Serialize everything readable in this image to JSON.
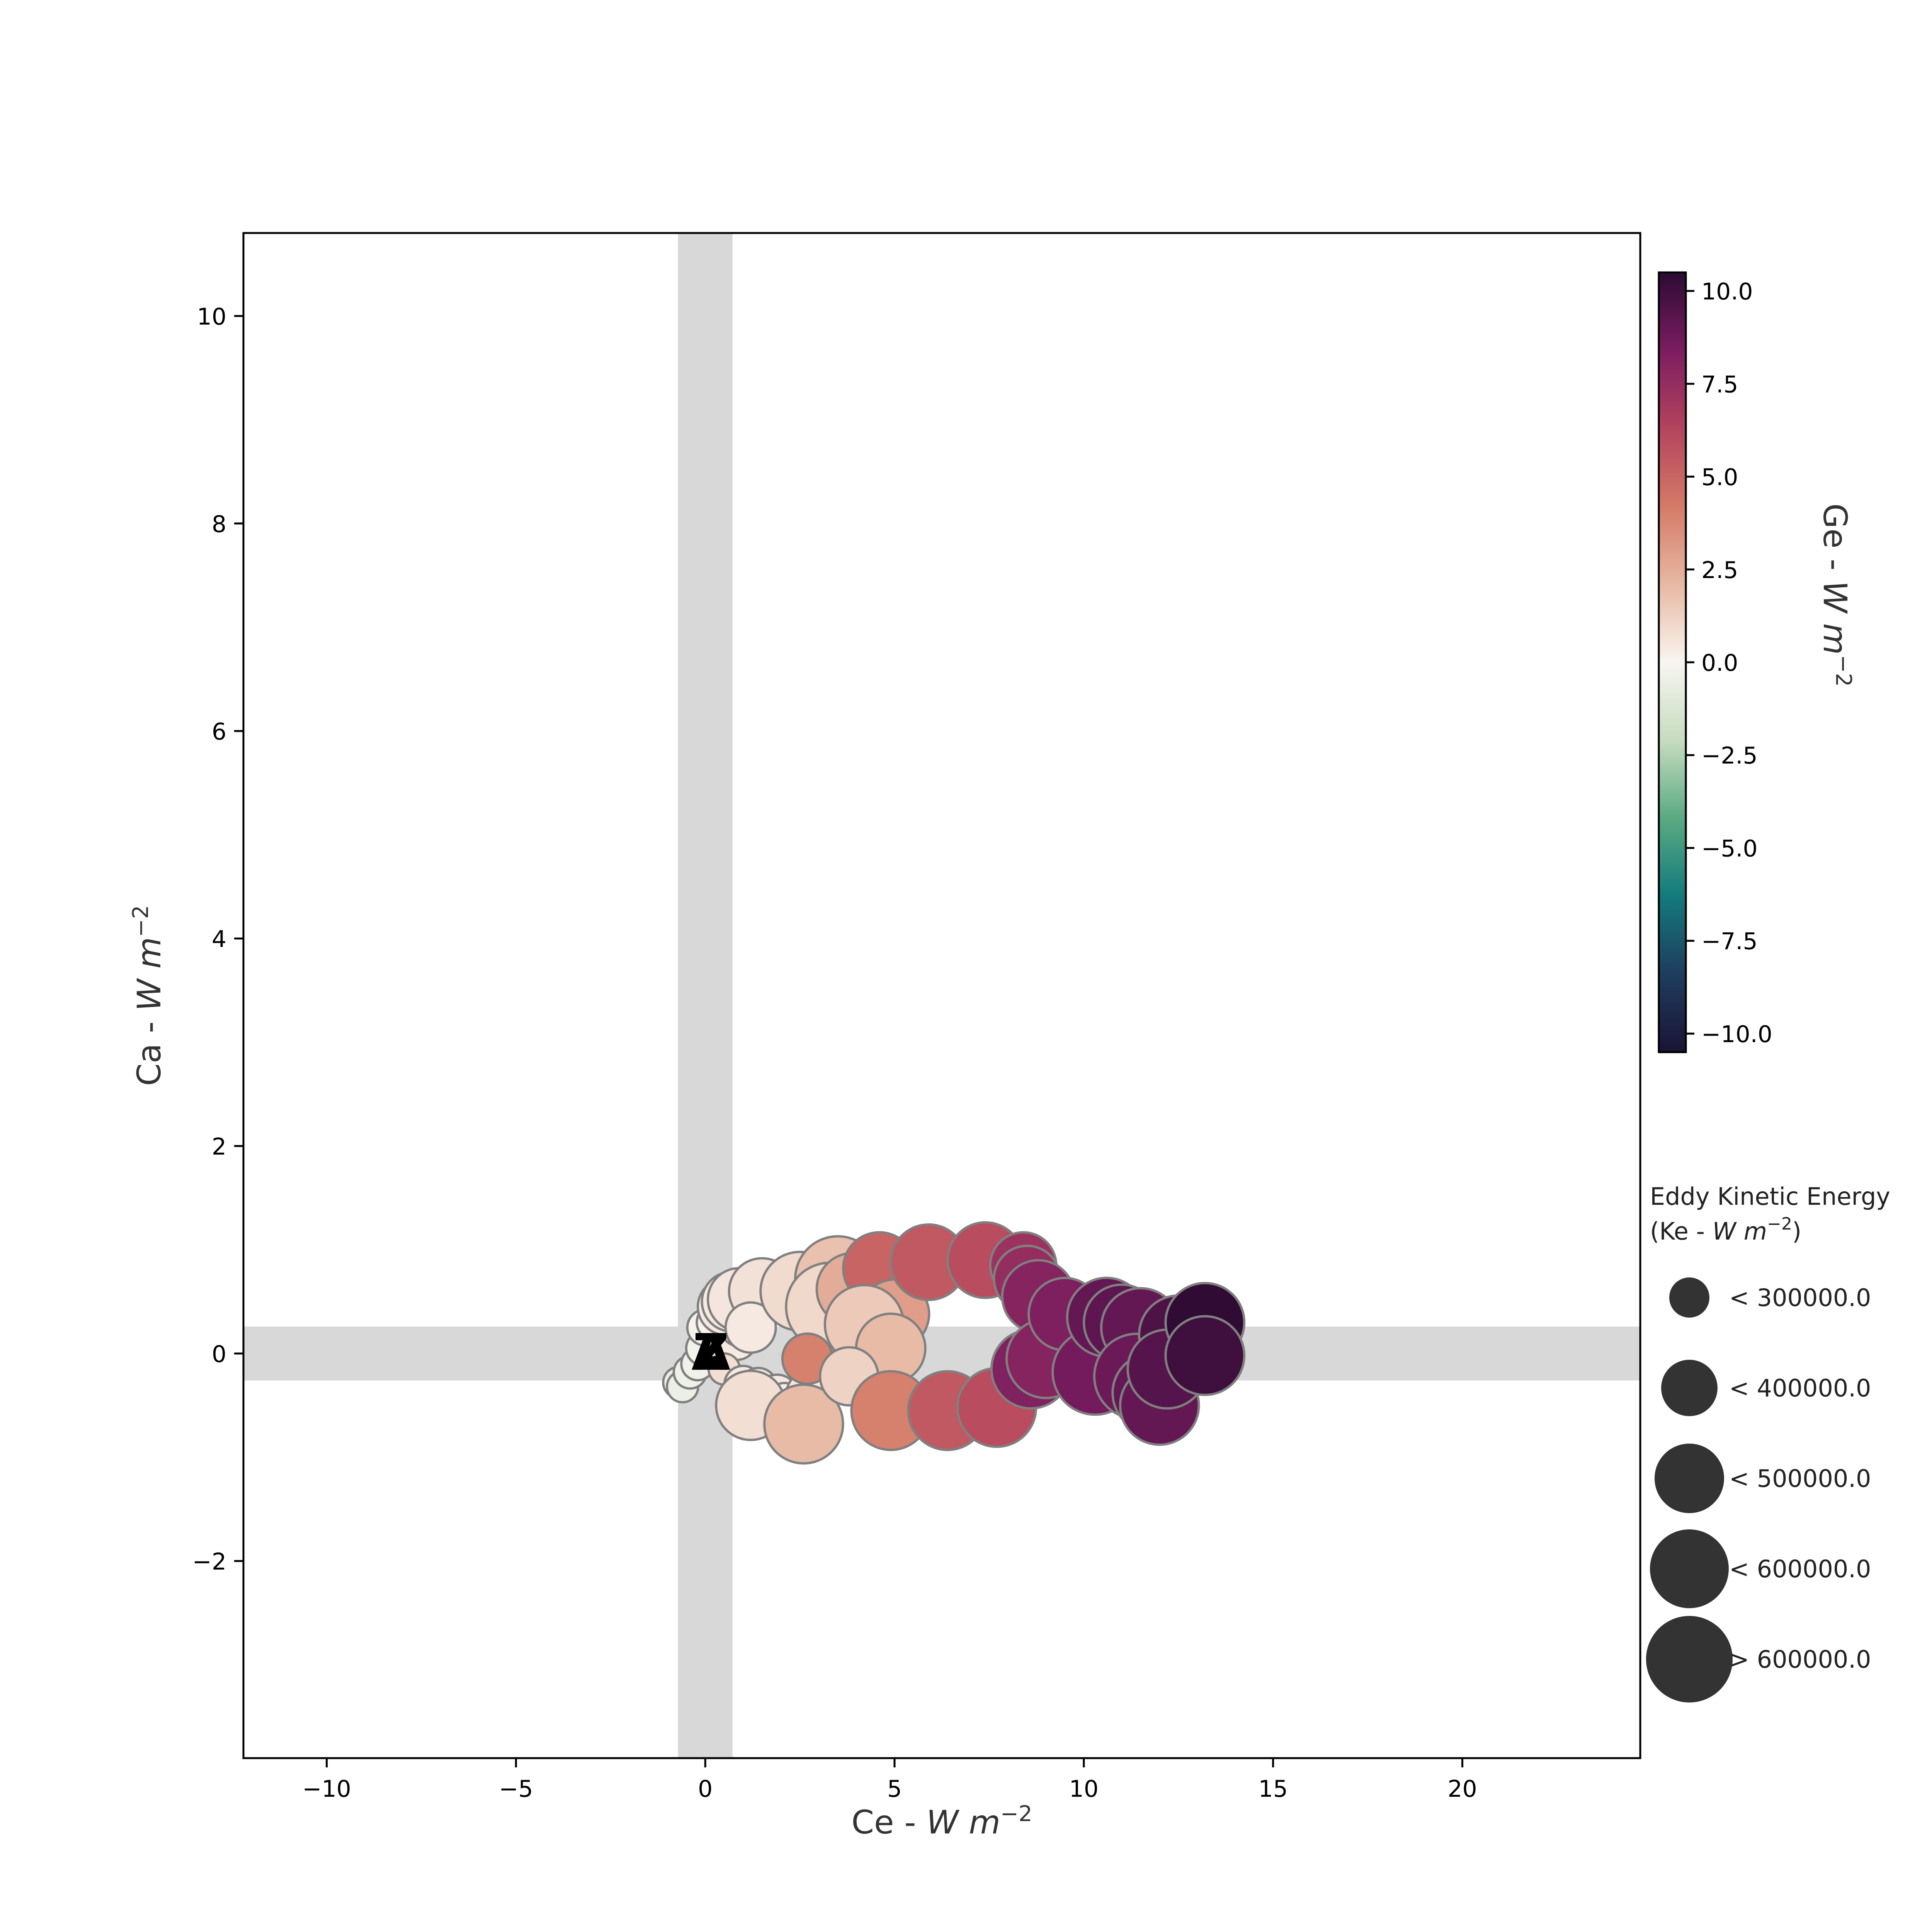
{
  "chart_data": {
    "type": "scatter",
    "title": "",
    "xlabel": {
      "text": "Ce - ",
      "math": "W m",
      "sup": "−2"
    },
    "ylabel": {
      "text": "Ca - ",
      "math": "W m",
      "sup": "−2"
    },
    "xlim": [
      -12.2,
      24.7
    ],
    "ylim": [
      -3.9,
      10.8
    ],
    "xticks": [
      {
        "value": -10,
        "label": "−10"
      },
      {
        "value": -5,
        "label": "−5"
      },
      {
        "value": 0,
        "label": "0"
      },
      {
        "value": 5,
        "label": "5"
      },
      {
        "value": 10,
        "label": "10"
      },
      {
        "value": 15,
        "label": "15"
      },
      {
        "value": 20,
        "label": "20"
      }
    ],
    "yticks": [
      {
        "value": -2,
        "label": "−2"
      },
      {
        "value": 0,
        "label": "0"
      },
      {
        "value": 2,
        "label": "2"
      },
      {
        "value": 4,
        "label": "4"
      },
      {
        "value": 6,
        "label": "6"
      },
      {
        "value": 8,
        "label": "8"
      },
      {
        "value": 10,
        "label": "10"
      }
    ],
    "shaded_bands": {
      "vertical": [
        -0.72,
        0.72
      ],
      "horizontal": [
        -0.26,
        0.26
      ],
      "color": "#d8d8d8"
    },
    "colorbar": {
      "label": {
        "text": "Ge - ",
        "math": "W m",
        "sup": "−2"
      },
      "range": [
        -10.5,
        10.5
      ],
      "ticks": [
        {
          "value": 10.0,
          "label": "10.0"
        },
        {
          "value": 7.5,
          "label": "7.5"
        },
        {
          "value": 5.0,
          "label": "5.0"
        },
        {
          "value": 2.5,
          "label": "2.5"
        },
        {
          "value": 0.0,
          "label": "0.0"
        },
        {
          "value": -2.5,
          "label": "−2.5"
        },
        {
          "value": -5.0,
          "label": "−5.0"
        },
        {
          "value": -7.5,
          "label": "−7.5"
        },
        {
          "value": -10.0,
          "label": "−10.0"
        }
      ],
      "colormap": [
        "#1a1433",
        "#1f3c5e",
        "#137a7c",
        "#5aaa82",
        "#c7dcc0",
        "#f8f5f0",
        "#e7b8a3",
        "#d47a68",
        "#b4445e",
        "#7b1d60",
        "#2c0b33"
      ]
    },
    "size_legend": {
      "title_line1": "Eddy Kinetic Energy",
      "title_line2": {
        "text": "(Ke - ",
        "math": "W m",
        "sup": "−2",
        "close": ")"
      },
      "entries": [
        {
          "label": "< 300000.0",
          "ke": 300000
        },
        {
          "label": "< 400000.0",
          "ke": 400000
        },
        {
          "label": "< 500000.0",
          "ke": 500000
        },
        {
          "label": "< 600000.0",
          "ke": 600000
        },
        {
          "label": "> 600000.0",
          "ke": 700000
        }
      ],
      "marker_color": "#333333"
    },
    "markers": [
      {
        "name": "start",
        "symbol": "A",
        "x": 0.15,
        "y": 0.0
      },
      {
        "name": "end",
        "symbol": "Z",
        "x": 0.15,
        "y": 0.0
      }
    ],
    "point_edge_color": "#808080",
    "points": [
      {
        "x": -0.7,
        "y": -0.28,
        "ge": -0.6,
        "ke": 260000
      },
      {
        "x": -0.6,
        "y": -0.32,
        "ge": -0.5,
        "ke": 260000
      },
      {
        "x": -0.4,
        "y": -0.18,
        "ge": -0.4,
        "ke": 270000
      },
      {
        "x": -0.2,
        "y": -0.1,
        "ge": -0.3,
        "ke": 270000
      },
      {
        "x": -0.05,
        "y": 0.05,
        "ge": -0.2,
        "ke": 280000
      },
      {
        "x": 0.0,
        "y": 0.25,
        "ge": 0.1,
        "ke": 290000
      },
      {
        "x": 0.25,
        "y": 0.3,
        "ge": 0.1,
        "ke": 290000
      },
      {
        "x": 0.45,
        "y": 0.38,
        "ge": 0.2,
        "ke": 300000
      },
      {
        "x": 0.7,
        "y": 0.3,
        "ge": 0.3,
        "ke": 300000
      },
      {
        "x": 0.85,
        "y": 0.12,
        "ge": 0.4,
        "ke": 300000
      },
      {
        "x": 0.9,
        "y": 0.25,
        "ge": 0.3,
        "ke": 300000
      },
      {
        "x": 0.5,
        "y": -0.15,
        "ge": 0.8,
        "ke": 260000
      },
      {
        "x": 1.0,
        "y": -0.3,
        "ge": 0.4,
        "ke": 300000
      },
      {
        "x": 1.4,
        "y": -0.32,
        "ge": 0.5,
        "ke": 300000
      },
      {
        "x": 1.9,
        "y": -0.4,
        "ge": 0.4,
        "ke": 320000
      },
      {
        "x": 2.1,
        "y": -0.48,
        "ge": 0.3,
        "ke": 320000
      },
      {
        "x": 2.8,
        "y": -0.4,
        "ge": 0.5,
        "ke": 380000
      },
      {
        "x": 0.55,
        "y": 0.45,
        "ge": 0.4,
        "ke": 420000
      },
      {
        "x": 0.7,
        "y": 0.5,
        "ge": 0.4,
        "ke": 440000
      },
      {
        "x": 0.9,
        "y": 0.52,
        "ge": 0.5,
        "ke": 460000
      },
      {
        "x": 1.5,
        "y": 0.6,
        "ge": 0.7,
        "ke": 480000
      },
      {
        "x": 1.2,
        "y": 0.25,
        "ge": 0.4,
        "ke": 380000
      },
      {
        "x": 2.5,
        "y": 0.6,
        "ge": 0.9,
        "ke": 560000
      },
      {
        "x": 3.5,
        "y": 0.72,
        "ge": 1.8,
        "ke": 600000
      },
      {
        "x": 3.3,
        "y": 0.45,
        "ge": 1.0,
        "ke": 620000
      },
      {
        "x": 3.9,
        "y": 0.62,
        "ge": 2.5,
        "ke": 520000
      },
      {
        "x": 4.6,
        "y": 0.82,
        "ge": 5.0,
        "ke": 520000
      },
      {
        "x": 5.0,
        "y": 0.38,
        "ge": 3.0,
        "ke": 500000
      },
      {
        "x": 4.2,
        "y": 0.28,
        "ge": 1.5,
        "ke": 560000
      },
      {
        "x": 4.9,
        "y": 0.05,
        "ge": 2.0,
        "ke": 500000
      },
      {
        "x": 1.2,
        "y": -0.5,
        "ge": 0.8,
        "ke": 500000
      },
      {
        "x": 2.6,
        "y": -0.68,
        "ge": 2.0,
        "ke": 560000
      },
      {
        "x": 2.7,
        "y": -0.05,
        "ge": 4.0,
        "ke": 380000
      },
      {
        "x": 3.8,
        "y": -0.22,
        "ge": 1.2,
        "ke": 430000
      },
      {
        "x": 4.9,
        "y": -0.55,
        "ge": 4.0,
        "ke": 560000
      },
      {
        "x": 5.9,
        "y": 0.88,
        "ge": 5.5,
        "ke": 540000
      },
      {
        "x": 6.4,
        "y": -0.55,
        "ge": 5.5,
        "ke": 560000
      },
      {
        "x": 7.4,
        "y": 0.9,
        "ge": 6.0,
        "ke": 540000
      },
      {
        "x": 7.7,
        "y": -0.52,
        "ge": 6.0,
        "ke": 560000
      },
      {
        "x": 8.4,
        "y": 0.85,
        "ge": 7.2,
        "ke": 480000
      },
      {
        "x": 8.5,
        "y": 0.72,
        "ge": 7.5,
        "ke": 480000
      },
      {
        "x": 8.8,
        "y": 0.55,
        "ge": 8.0,
        "ke": 520000
      },
      {
        "x": 8.6,
        "y": -0.15,
        "ge": 8.2,
        "ke": 560000
      },
      {
        "x": 9.0,
        "y": -0.05,
        "ge": 8.0,
        "ke": 560000
      },
      {
        "x": 9.5,
        "y": 0.38,
        "ge": 8.3,
        "ke": 520000
      },
      {
        "x": 10.3,
        "y": -0.18,
        "ge": 8.6,
        "ke": 600000
      },
      {
        "x": 10.6,
        "y": 0.35,
        "ge": 9.0,
        "ke": 560000
      },
      {
        "x": 11.0,
        "y": 0.3,
        "ge": 9.2,
        "ke": 540000
      },
      {
        "x": 11.5,
        "y": 0.25,
        "ge": 9.0,
        "ke": 560000
      },
      {
        "x": 11.4,
        "y": -0.22,
        "ge": 8.8,
        "ke": 600000
      },
      {
        "x": 11.8,
        "y": -0.38,
        "ge": 9.0,
        "ke": 560000
      },
      {
        "x": 12.0,
        "y": -0.5,
        "ge": 9.0,
        "ke": 560000
      },
      {
        "x": 12.5,
        "y": 0.18,
        "ge": 9.6,
        "ke": 560000
      },
      {
        "x": 12.2,
        "y": -0.15,
        "ge": 9.4,
        "ke": 560000
      },
      {
        "x": 13.2,
        "y": 0.3,
        "ge": 10.4,
        "ke": 560000
      },
      {
        "x": 13.2,
        "y": -0.02,
        "ge": 10.0,
        "ke": 560000
      }
    ]
  }
}
